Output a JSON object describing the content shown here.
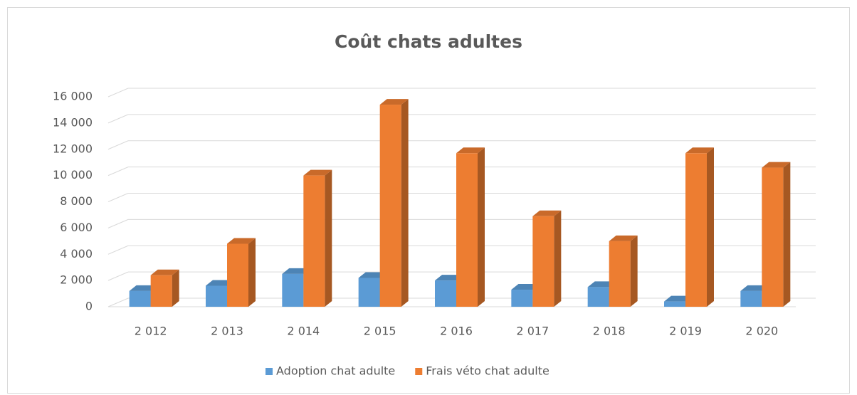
{
  "chart_data": {
    "type": "bar3d",
    "title": "Coût chats adultes",
    "categories": [
      "2 012",
      "2 013",
      "2 014",
      "2 015",
      "2 016",
      "2 017",
      "2 018",
      "2 019",
      "2 020"
    ],
    "series": [
      {
        "name": "Adoption chat adulte",
        "color": "#5b9bd5",
        "values": [
          1200,
          1600,
          2500,
          2200,
          2000,
          1300,
          1500,
          400,
          1200
        ]
      },
      {
        "name": "Frais véto chat adulte",
        "color": "#ed7d31",
        "values": [
          2400,
          4800,
          10000,
          15400,
          11700,
          6900,
          5000,
          11700,
          10600
        ]
      }
    ],
    "ylim": [
      0,
      16000
    ],
    "yticks": [
      0,
      {
        "value": 2000,
        "label": "2 000"
      },
      {
        "value": 4000,
        "label": "4 000"
      },
      {
        "value": 6000,
        "label": "6 000"
      },
      {
        "value": 8000,
        "label": "8 000"
      },
      {
        "value": 10000,
        "label": "10 000"
      },
      {
        "value": 12000,
        "label": "12 000"
      },
      {
        "value": 14000,
        "label": "14 000"
      },
      {
        "value": 16000,
        "label": "16 000"
      }
    ],
    "grid": true,
    "legend": "bottom"
  }
}
